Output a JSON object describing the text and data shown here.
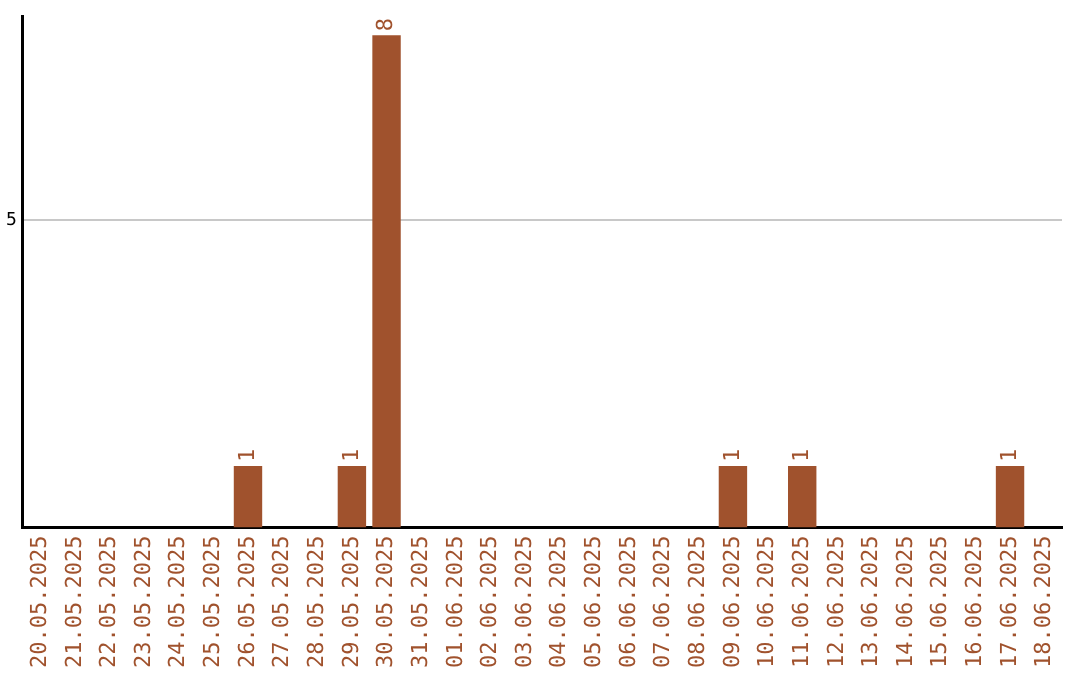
{
  "chart_data": {
    "type": "bar",
    "categories": [
      "20.05.2025",
      "21.05.2025",
      "22.05.2025",
      "23.05.2025",
      "24.05.2025",
      "25.05.2025",
      "26.05.2025",
      "27.05.2025",
      "28.05.2025",
      "29.05.2025",
      "30.05.2025",
      "31.05.2025",
      "01.06.2025",
      "02.06.2025",
      "03.06.2025",
      "04.06.2025",
      "05.06.2025",
      "06.06.2025",
      "07.06.2025",
      "08.06.2025",
      "09.06.2025",
      "10.06.2025",
      "11.06.2025",
      "12.06.2025",
      "13.06.2025",
      "14.06.2025",
      "15.06.2025",
      "16.06.2025",
      "17.06.2025",
      "18.06.2025"
    ],
    "values": [
      0,
      0,
      0,
      0,
      0,
      0,
      1,
      0,
      0,
      1,
      8,
      0,
      0,
      0,
      0,
      0,
      0,
      0,
      0,
      0,
      1,
      0,
      1,
      0,
      0,
      0,
      0,
      0,
      1,
      0
    ],
    "value_labels": [
      null,
      null,
      null,
      null,
      null,
      null,
      "1",
      null,
      null,
      "1",
      "8",
      null,
      null,
      null,
      null,
      null,
      null,
      null,
      null,
      null,
      "1",
      null,
      "1",
      null,
      null,
      null,
      null,
      null,
      "1",
      null
    ],
    "color": "#a0522d",
    "ylim": [
      0,
      8.3
    ],
    "yticks": [
      5
    ],
    "grid": "y",
    "legend": false
  }
}
